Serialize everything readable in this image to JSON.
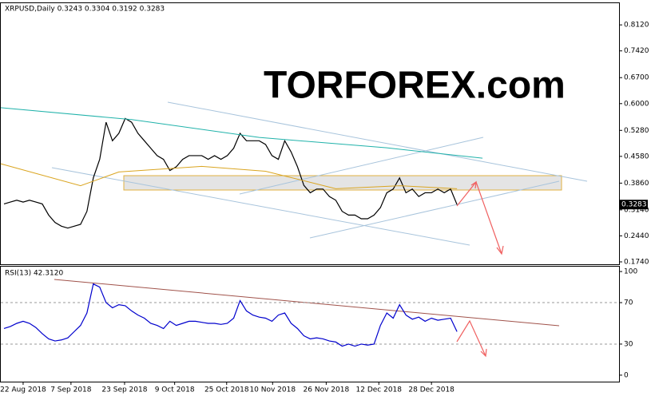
{
  "chart_data": [
    {
      "type": "line",
      "title": "XRPUSD,Daily  0.3243 0.3304 0.3192 0.3283",
      "watermark": "TORFOREX.com",
      "last_label": "0.3283",
      "last_value": 0.3283,
      "xlim": [
        -0.5,
        96.4
      ],
      "ylim": [
        0.1675,
        0.8704
      ],
      "yticks": [
        {
          "value": 0.812,
          "label": "0.8120"
        },
        {
          "value": 0.742,
          "label": "0.7420"
        },
        {
          "value": 0.67,
          "label": "0.6700"
        },
        {
          "value": 0.6,
          "label": "0.6000"
        },
        {
          "value": 0.528,
          "label": "0.5280"
        },
        {
          "value": 0.458,
          "label": "0.4580"
        },
        {
          "value": 0.386,
          "label": "0.3860"
        },
        {
          "value": 0.314,
          "label": "0.3140"
        },
        {
          "value": 0.244,
          "label": "0.2440"
        },
        {
          "value": 0.174,
          "label": "0.1740"
        }
      ],
      "xticks": [
        {
          "value": 3,
          "label": "22 Aug 2018"
        },
        {
          "value": 10.5,
          "label": "7 Sep 2018"
        },
        {
          "value": 18.9,
          "label": "23 Sep 2018"
        },
        {
          "value": 26.75,
          "label": "9 Oct 2018"
        },
        {
          "value": 34.9,
          "label": "25 Oct 2018"
        },
        {
          "value": 42.1,
          "label": "10 Nov 2018"
        },
        {
          "value": 50.5,
          "label": "26 Nov 2018"
        },
        {
          "value": 58.75,
          "label": "12 Dec 2018"
        },
        {
          "value": 67,
          "label": "28 Dec 2018"
        }
      ],
      "series": [
        {
          "color": "#000000",
          "values": [
            0.33,
            0.335,
            0.34,
            0.335,
            0.34,
            0.335,
            0.33,
            0.3,
            0.28,
            0.27,
            0.265,
            0.27,
            0.275,
            0.31,
            0.4,
            0.45,
            0.55,
            0.5,
            0.52,
            0.56,
            0.55,
            0.52,
            0.5,
            0.48,
            0.46,
            0.45,
            0.42,
            0.43,
            0.45,
            0.46,
            0.46,
            0.46,
            0.45,
            0.46,
            0.45,
            0.46,
            0.48,
            0.52,
            0.5,
            0.5,
            0.5,
            0.49,
            0.46,
            0.45,
            0.5,
            0.47,
            0.43,
            0.38,
            0.36,
            0.37,
            0.37,
            0.35,
            0.34,
            0.31,
            0.3,
            0.3,
            0.29,
            0.29,
            0.3,
            0.32,
            0.36,
            0.37,
            0.4,
            0.36,
            0.37,
            0.35,
            0.36,
            0.36,
            0.37,
            0.36,
            0.37,
            0.3283
          ]
        },
        {
          "color": "#20b2aa",
          "x": [
            -0.5,
            20,
            40,
            60,
            75
          ],
          "values": [
            0.5892,
            0.557,
            0.509,
            0.481,
            0.453
          ]
        },
        {
          "color": "#daa520",
          "x": [
            -0.5,
            12,
            18,
            31,
            41,
            52,
            62,
            71
          ],
          "values": [
            0.438,
            0.379,
            0.416,
            0.431,
            0.418,
            0.371,
            0.379,
            0.371
          ]
        }
      ]
    },
    {
      "type": "line",
      "title": "RSI(13) 42.3120",
      "xlim": [
        -0.5,
        96.4
      ],
      "ylim": [
        -6.25,
        104.7
      ],
      "yticks": [
        100,
        70,
        30,
        0
      ],
      "levels": [
        70,
        30
      ],
      "series": [
        {
          "color": "#0000cd",
          "values": [
            45,
            47,
            50,
            52,
            50,
            46,
            40,
            35,
            33,
            34,
            36,
            42,
            48,
            60,
            88,
            85,
            70,
            65,
            68,
            67,
            62,
            58,
            55,
            50,
            48,
            45,
            52,
            48,
            50,
            52,
            52,
            51,
            50,
            50,
            49,
            50,
            55,
            72,
            62,
            58,
            56,
            55,
            52,
            58,
            60,
            50,
            45,
            38,
            35,
            36,
            35,
            33,
            32,
            28,
            30,
            28,
            30,
            29,
            30,
            48,
            60,
            55,
            68,
            58,
            54,
            56,
            52,
            55,
            53,
            54,
            55,
            42
          ]
        }
      ]
    }
  ]
}
